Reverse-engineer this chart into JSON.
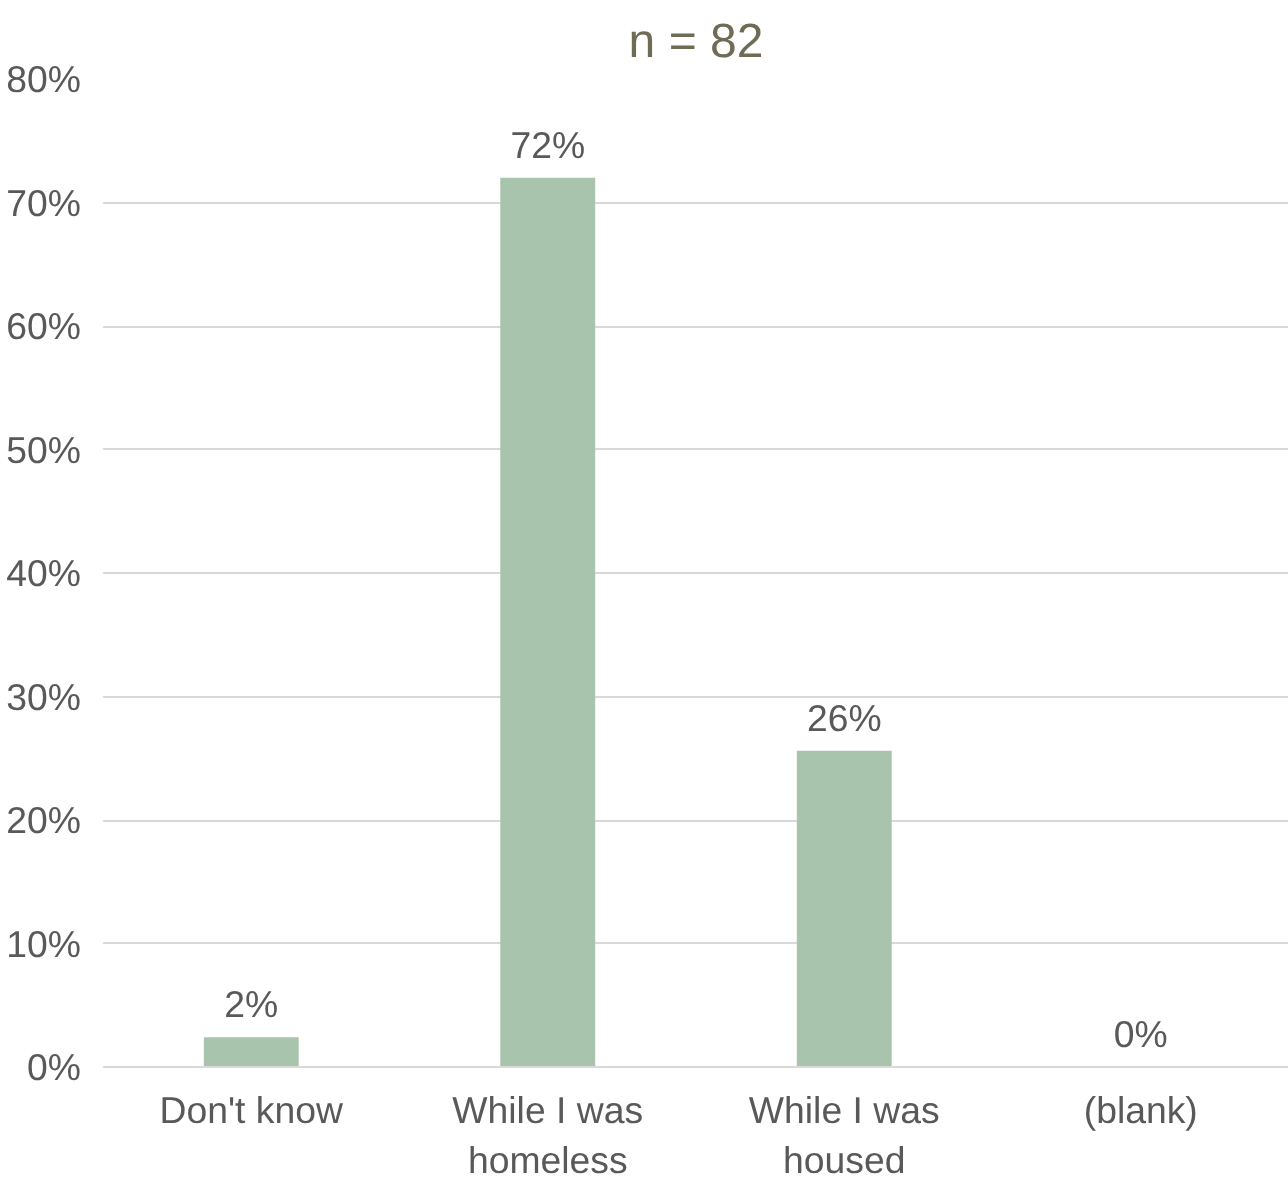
{
  "chart_data": {
    "type": "bar",
    "title": "n = 82",
    "categories": [
      "Don't know",
      "While I was homeless",
      "While I was housed",
      "(blank)"
    ],
    "values": [
      2.4,
      72,
      25.6,
      0
    ],
    "value_labels": [
      "2%",
      "72%",
      "26%",
      "0%"
    ],
    "color": "#a9c4ad",
    "ylim": [
      0,
      80
    ],
    "yticks": [
      {
        "value": 0,
        "label": "0%"
      },
      {
        "value": 10,
        "label": "10%"
      },
      {
        "value": 20,
        "label": "20%"
      },
      {
        "value": 30,
        "label": "30%"
      },
      {
        "value": 40,
        "label": "40%"
      },
      {
        "value": 50,
        "label": "50%"
      },
      {
        "value": 60,
        "label": "60%"
      },
      {
        "value": 70,
        "label": "70%"
      },
      {
        "value": 80,
        "label": "80%"
      }
    ],
    "grid": "y"
  }
}
